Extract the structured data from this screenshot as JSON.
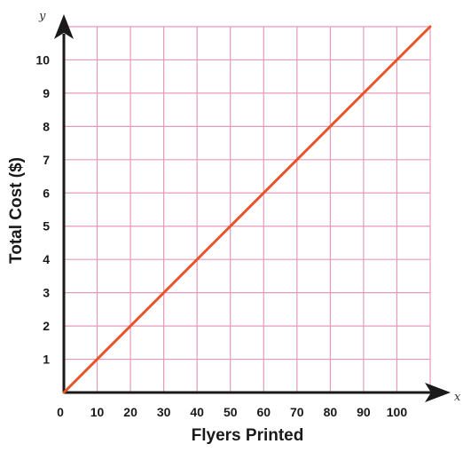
{
  "chart_data": {
    "type": "line",
    "xlabel": "Flyers Printed",
    "ylabel": "Total Cost ($)",
    "x_axis_letter": "x",
    "y_axis_letter": "y",
    "xlim": [
      0,
      110
    ],
    "ylim": [
      0,
      11
    ],
    "x_ticks": [
      0,
      10,
      20,
      30,
      40,
      50,
      60,
      70,
      80,
      90,
      100
    ],
    "y_ticks": [
      1,
      2,
      3,
      4,
      5,
      6,
      7,
      8,
      9,
      10
    ],
    "grid": true,
    "series": [
      {
        "x": [
          0,
          110
        ],
        "y": [
          0,
          11
        ]
      }
    ],
    "colors": {
      "line": "#e8542a",
      "grid": "#e59ab9",
      "axis": "#1a1a1a"
    }
  }
}
